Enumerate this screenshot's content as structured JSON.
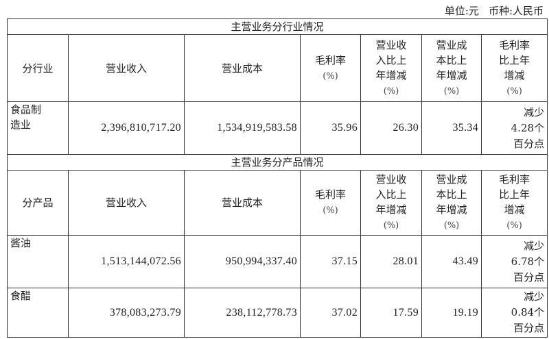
{
  "unit_label": "单位:元",
  "currency_label": "币种:人民币",
  "sections": [
    {
      "title": "主营业务分行业情况",
      "headers": [
        "分行业",
        "营业收入",
        "营业成本",
        "毛利率",
        "营业收入比上年增减",
        "营业成本比上年增减",
        "毛利率比上年增减"
      ],
      "rows": [
        {
          "name": "食品制造业",
          "revenue": "2,396,810,717.20",
          "cost": "1,534,919,583.58",
          "margin": "35.96",
          "rev_change": "26.30",
          "cost_change": "35.34",
          "margin_change": "减少4.28个百分点"
        }
      ]
    },
    {
      "title": "主营业务分产品情况",
      "headers": [
        "分产品",
        "营业收入",
        "营业成本",
        "毛利率",
        "营业收入比上年增减",
        "营业成本比上年增减",
        "毛利率比上年增减"
      ],
      "rows": [
        {
          "name": "酱油",
          "revenue": "1,513,144,072.56",
          "cost": "950,994,337.40",
          "margin": "37.15",
          "rev_change": "28.01",
          "cost_change": "43.49",
          "margin_change": "减少6.78个百分点"
        },
        {
          "name": "食醋",
          "revenue": "378,083,273.79",
          "cost": "238,112,778.73",
          "margin": "37.02",
          "rev_change": "17.59",
          "cost_change": "19.19",
          "margin_change": "减少0.84个百分点"
        }
      ]
    }
  ],
  "pct_unit": "(%)"
}
